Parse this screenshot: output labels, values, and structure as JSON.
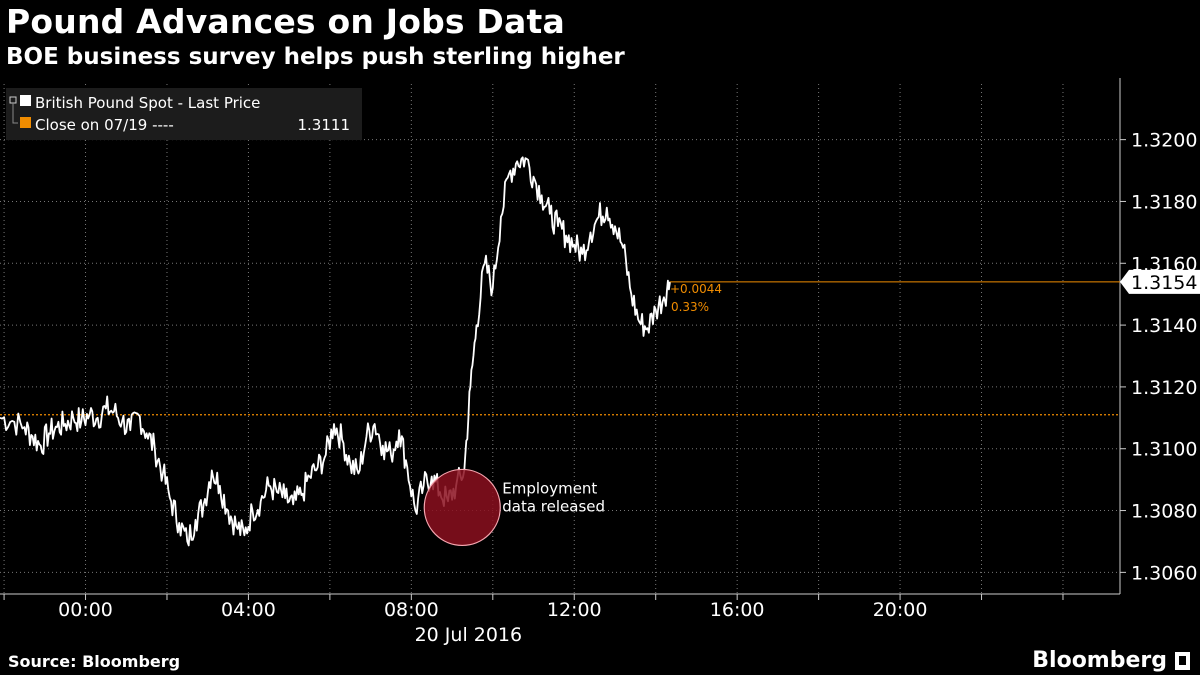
{
  "header": {
    "title": "Pound Advances on Jobs Data",
    "subtitle": "BOE business survey helps push sterling higher"
  },
  "footer": {
    "source": "Source: Bloomberg",
    "brand": "Bloomberg"
  },
  "colors": {
    "background": "#000000",
    "series": "#ffffff",
    "close_line": "#f08c00",
    "grid": "#777777",
    "marker_fill": "#8b0f1f",
    "marker_stroke": "#f7a6b0"
  },
  "chart_data": {
    "type": "line",
    "legend": [
      {
        "label": "British Pound Spot - Last Price",
        "value": ""
      },
      {
        "label": "Close on 07/19 ----",
        "value": "1.3111"
      }
    ],
    "x_ticks": [
      "00:00",
      "04:00",
      "08:00",
      "12:00",
      "16:00",
      "20:00"
    ],
    "x_date_label": "20 Jul 2016",
    "y_ticks": [
      "1.3060",
      "1.3080",
      "1.3100",
      "1.3120",
      "1.3140",
      "1.3160",
      "1.3180",
      "1.3200"
    ],
    "ylim": [
      1.3053,
      1.3218
    ],
    "xlim_hours": [
      -2.1,
      25.4
    ],
    "grid": true,
    "reference_line": {
      "label": "Close on 07/19",
      "value": 1.3111
    },
    "last_value": {
      "label": "1.3154",
      "value": 1.3154,
      "change": "+0.0044",
      "change_pct": "0.33%"
    },
    "annotation": {
      "text_line1": "Employment",
      "text_line2": "data released",
      "x_hours": 9.25,
      "y": 1.3081
    },
    "series": [
      {
        "name": "British Pound Spot - Last Price",
        "x_hours": [
          -2.1,
          -1.8,
          -1.5,
          -1.3,
          -1.1,
          -0.9,
          -0.7,
          -0.5,
          -0.3,
          -0.1,
          0.1,
          0.3,
          0.5,
          0.7,
          0.9,
          1.1,
          1.3,
          1.5,
          1.7,
          1.9,
          2.1,
          2.3,
          2.5,
          2.7,
          2.9,
          3.1,
          3.3,
          3.5,
          3.7,
          3.9,
          4.1,
          4.3,
          4.5,
          4.7,
          4.9,
          5.1,
          5.3,
          5.5,
          5.7,
          5.9,
          6.1,
          6.3,
          6.5,
          6.7,
          6.9,
          7.1,
          7.3,
          7.5,
          7.7,
          7.9,
          8.1,
          8.3,
          8.5,
          8.7,
          8.9,
          9.1,
          9.3,
          9.45,
          9.6,
          9.8,
          10.0,
          10.2,
          10.4,
          10.6,
          10.8,
          11.0,
          11.2,
          11.4,
          11.6,
          11.8,
          12.0,
          12.2,
          12.4,
          12.6,
          12.8,
          13.0,
          13.2,
          13.4,
          13.6,
          13.8,
          14.0,
          14.2,
          14.35
        ],
        "values": [
          1.311,
          1.3109,
          1.3107,
          1.3104,
          1.3101,
          1.3105,
          1.3107,
          1.3108,
          1.311,
          1.3109,
          1.3111,
          1.311,
          1.3113,
          1.3112,
          1.3109,
          1.3106,
          1.3111,
          1.3105,
          1.31,
          1.3092,
          1.3083,
          1.3076,
          1.307,
          1.3077,
          1.3082,
          1.3093,
          1.3088,
          1.308,
          1.3075,
          1.3072,
          1.308,
          1.3083,
          1.3088,
          1.3086,
          1.3084,
          1.3082,
          1.3085,
          1.3091,
          1.3094,
          1.3098,
          1.3108,
          1.3103,
          1.3095,
          1.3092,
          1.3104,
          1.3108,
          1.3101,
          1.3098,
          1.3106,
          1.3094,
          1.308,
          1.3088,
          1.3091,
          1.3086,
          1.3083,
          1.3088,
          1.3093,
          1.312,
          1.314,
          1.316,
          1.3152,
          1.3175,
          1.3189,
          1.3193,
          1.3194,
          1.3188,
          1.3182,
          1.3176,
          1.3172,
          1.3169,
          1.3166,
          1.3163,
          1.317,
          1.3175,
          1.3178,
          1.3172,
          1.3165,
          1.315,
          1.3141,
          1.3139,
          1.3145,
          1.3149,
          1.3154
        ]
      }
    ]
  }
}
